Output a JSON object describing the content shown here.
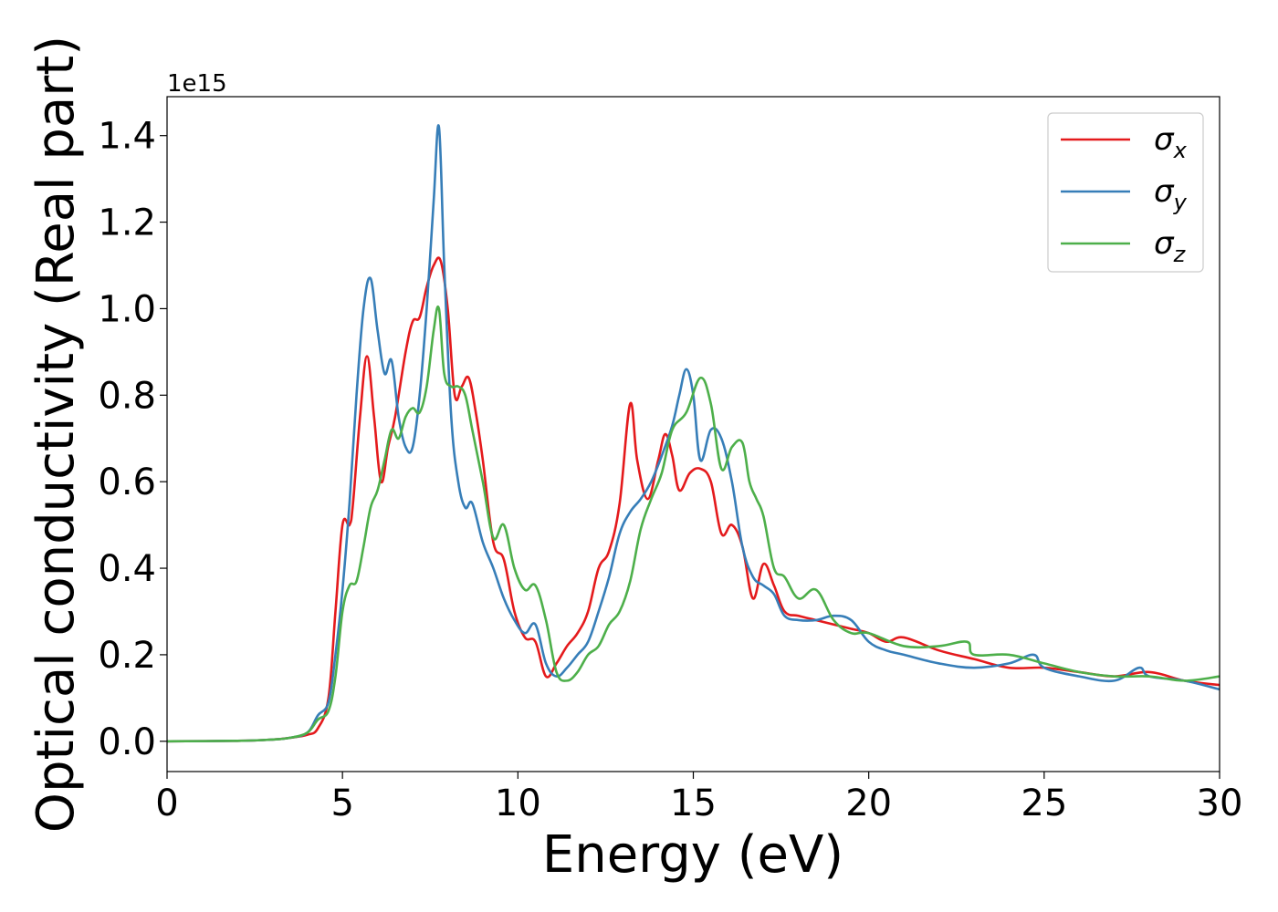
{
  "chart_data": {
    "type": "line",
    "xlabel": "Energy (eV)",
    "ylabel": "Optical conductivity (Real part)",
    "y_offset_label": "1e15",
    "xlim": [
      0,
      30
    ],
    "ylim": [
      -0.07,
      1.49
    ],
    "y_scale_factor": 1000000000000000.0,
    "x_ticks": [
      0,
      5,
      10,
      15,
      20,
      25,
      30
    ],
    "x_tick_labels": [
      "0",
      "5",
      "10",
      "15",
      "20",
      "25",
      "30"
    ],
    "y_ticks": [
      0.0,
      0.2,
      0.4,
      0.6,
      0.8,
      1.0,
      1.2,
      1.4
    ],
    "y_tick_labels": [
      "0.0",
      "0.2",
      "0.4",
      "0.6",
      "0.8",
      "1.0",
      "1.2",
      "1.4"
    ],
    "grid": false,
    "legend_position": "top-right",
    "series": [
      {
        "name": "σ_x",
        "label_base": "σ",
        "label_sub": "x",
        "color": "#e41a1c",
        "x": [
          0,
          2,
          3,
          3.5,
          4.0,
          4.3,
          4.6,
          4.8,
          5.0,
          5.2,
          5.3,
          5.5,
          5.7,
          5.9,
          6.1,
          6.3,
          6.5,
          6.8,
          7.0,
          7.2,
          7.4,
          7.6,
          7.8,
          8.0,
          8.2,
          8.4,
          8.6,
          8.8,
          9.0,
          9.3,
          9.6,
          9.9,
          10.2,
          10.5,
          10.8,
          11.1,
          11.4,
          11.7,
          12.0,
          12.3,
          12.6,
          12.9,
          13.2,
          13.4,
          13.7,
          14.0,
          14.2,
          14.4,
          14.6,
          14.9,
          15.2,
          15.5,
          15.8,
          16.1,
          16.4,
          16.7,
          17.0,
          17.3,
          17.6,
          18.0,
          18.5,
          19.0,
          19.5,
          20.0,
          20.5,
          21.0,
          22.0,
          23.0,
          24.0,
          25.0,
          26.0,
          27.0,
          28.0,
          29.0,
          30.0
        ],
        "values": [
          0.0,
          0.001,
          0.004,
          0.008,
          0.015,
          0.03,
          0.1,
          0.3,
          0.5,
          0.5,
          0.55,
          0.75,
          0.89,
          0.75,
          0.6,
          0.68,
          0.75,
          0.9,
          0.97,
          0.98,
          1.05,
          1.1,
          1.11,
          1.0,
          0.8,
          0.82,
          0.84,
          0.76,
          0.65,
          0.46,
          0.42,
          0.3,
          0.24,
          0.23,
          0.15,
          0.18,
          0.22,
          0.25,
          0.3,
          0.4,
          0.44,
          0.55,
          0.78,
          0.65,
          0.56,
          0.65,
          0.71,
          0.66,
          0.58,
          0.62,
          0.63,
          0.6,
          0.48,
          0.5,
          0.45,
          0.33,
          0.41,
          0.36,
          0.3,
          0.29,
          0.28,
          0.27,
          0.26,
          0.25,
          0.23,
          0.24,
          0.21,
          0.19,
          0.17,
          0.17,
          0.16,
          0.15,
          0.16,
          0.14,
          0.13
        ]
      },
      {
        "name": "σ_y",
        "label_base": "σ",
        "label_sub": "y",
        "color": "#377eb8",
        "x": [
          0,
          2,
          3,
          3.5,
          4.0,
          4.3,
          4.6,
          4.8,
          5.0,
          5.2,
          5.4,
          5.6,
          5.8,
          6.0,
          6.2,
          6.4,
          6.6,
          6.8,
          7.0,
          7.2,
          7.4,
          7.6,
          7.75,
          7.9,
          8.1,
          8.3,
          8.5,
          8.7,
          9.0,
          9.3,
          9.6,
          9.9,
          10.2,
          10.5,
          10.8,
          11.1,
          11.4,
          11.7,
          12.0,
          12.3,
          12.6,
          12.9,
          13.2,
          13.5,
          13.8,
          14.1,
          14.4,
          14.6,
          14.8,
          15.0,
          15.2,
          15.5,
          15.8,
          16.1,
          16.4,
          16.7,
          17.0,
          17.3,
          17.6,
          18.0,
          18.5,
          19.0,
          19.5,
          20.0,
          20.5,
          21.0,
          22.0,
          23.0,
          24.0,
          24.7,
          25.0,
          26.0,
          27.0,
          27.7,
          28.0,
          29.0,
          30.0
        ],
        "values": [
          0.0,
          0.001,
          0.004,
          0.008,
          0.02,
          0.06,
          0.09,
          0.2,
          0.35,
          0.55,
          0.8,
          1.0,
          1.07,
          0.95,
          0.85,
          0.88,
          0.75,
          0.68,
          0.68,
          0.8,
          1.0,
          1.25,
          1.42,
          1.1,
          0.75,
          0.6,
          0.54,
          0.55,
          0.46,
          0.4,
          0.33,
          0.28,
          0.25,
          0.27,
          0.18,
          0.15,
          0.17,
          0.2,
          0.23,
          0.3,
          0.38,
          0.48,
          0.53,
          0.56,
          0.6,
          0.66,
          0.73,
          0.8,
          0.86,
          0.8,
          0.65,
          0.72,
          0.7,
          0.6,
          0.45,
          0.38,
          0.36,
          0.34,
          0.29,
          0.28,
          0.28,
          0.29,
          0.28,
          0.23,
          0.21,
          0.2,
          0.18,
          0.17,
          0.18,
          0.2,
          0.17,
          0.15,
          0.14,
          0.17,
          0.15,
          0.14,
          0.12
        ]
      },
      {
        "name": "σ_z",
        "label_base": "σ",
        "label_sub": "z",
        "color": "#4daf4a",
        "x": [
          0,
          2,
          3,
          3.5,
          4.0,
          4.3,
          4.6,
          4.8,
          5.0,
          5.2,
          5.4,
          5.6,
          5.8,
          6.0,
          6.2,
          6.4,
          6.6,
          6.8,
          7.0,
          7.2,
          7.4,
          7.6,
          7.75,
          7.9,
          8.1,
          8.3,
          8.5,
          8.7,
          9.0,
          9.3,
          9.6,
          9.9,
          10.2,
          10.5,
          10.8,
          11.1,
          11.4,
          11.7,
          12.0,
          12.3,
          12.6,
          12.9,
          13.2,
          13.5,
          13.8,
          14.1,
          14.4,
          14.8,
          15.2,
          15.5,
          15.8,
          16.1,
          16.4,
          16.6,
          16.8,
          17.0,
          17.3,
          17.6,
          18.0,
          18.5,
          19.0,
          19.5,
          20.0,
          21.0,
          22.0,
          22.8,
          23.0,
          24.0,
          25.0,
          26.0,
          27.0,
          28.0,
          29.0,
          30.0
        ],
        "values": [
          0.0,
          0.001,
          0.004,
          0.008,
          0.02,
          0.05,
          0.07,
          0.15,
          0.3,
          0.36,
          0.37,
          0.45,
          0.54,
          0.58,
          0.65,
          0.72,
          0.7,
          0.75,
          0.77,
          0.76,
          0.82,
          0.95,
          1.0,
          0.85,
          0.82,
          0.82,
          0.8,
          0.72,
          0.6,
          0.47,
          0.5,
          0.4,
          0.35,
          0.36,
          0.28,
          0.16,
          0.14,
          0.16,
          0.2,
          0.22,
          0.27,
          0.3,
          0.37,
          0.49,
          0.56,
          0.62,
          0.72,
          0.76,
          0.84,
          0.78,
          0.63,
          0.68,
          0.69,
          0.6,
          0.56,
          0.52,
          0.4,
          0.38,
          0.33,
          0.35,
          0.28,
          0.25,
          0.25,
          0.22,
          0.22,
          0.23,
          0.2,
          0.2,
          0.18,
          0.16,
          0.15,
          0.15,
          0.14,
          0.15
        ]
      }
    ]
  }
}
